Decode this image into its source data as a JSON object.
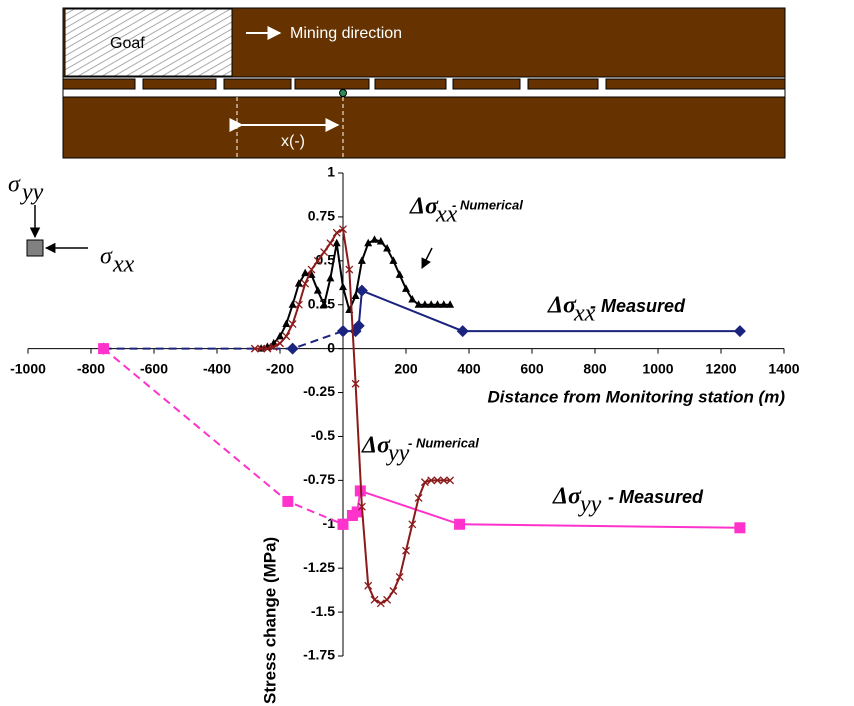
{
  "diagram": {
    "goaf": "Goaf",
    "direction": "Mining direction",
    "distance": "x(-)"
  },
  "stress_icon": {
    "symbol": "σ",
    "vertical": "yy",
    "horizontal": "xx"
  },
  "chart_data": {
    "type": "line",
    "x_label": "Distance from Monitoring station (m)",
    "y_label": "Stress change (MPa)",
    "xlim": [
      -1000,
      1400
    ],
    "ylim": [
      -1.75,
      1
    ],
    "xticks": [
      -1000,
      -800,
      -600,
      -400,
      -200,
      200,
      400,
      600,
      800,
      1000,
      1200,
      1400
    ],
    "yticks": [
      1,
      0.75,
      0.5,
      0.25,
      0,
      -0.25,
      -0.5,
      -0.75,
      -1,
      -1.25,
      -1.5,
      -1.75
    ],
    "annotations": [
      {
        "symbol": "Δσ",
        "sub": "xx",
        "text": "- Numerical"
      },
      {
        "symbol": "Δσ",
        "sub": "xx",
        "text": "- Measured"
      },
      {
        "symbol": "Δσ",
        "sub": "yy",
        "text": "- Numerical"
      },
      {
        "symbol": "Δσ",
        "sub": "yy",
        "text": "- Measured"
      }
    ],
    "series": [
      {
        "color": "#1a237e",
        "marker": "diamond",
        "dashed": true,
        "x": [
          -760,
          -160,
          0
        ],
        "values": [
          0,
          0,
          0.1
        ]
      },
      {
        "color": "#1a237e",
        "marker": "diamond",
        "dashed": false,
        "x": [
          0,
          40,
          50,
          60,
          380,
          1260
        ],
        "values": [
          0.1,
          0.1,
          0.13,
          0.33,
          0.1,
          0.1
        ]
      },
      {
        "color": "#ff33cc",
        "marker": "square",
        "dashed": true,
        "x": [
          -760,
          -175,
          0
        ],
        "values": [
          0,
          -0.87,
          -1.0
        ]
      },
      {
        "color": "#ff33cc",
        "marker": "square",
        "dashed": false,
        "x": [
          0,
          30,
          45,
          55,
          370,
          1260
        ],
        "values": [
          -1.0,
          -0.95,
          -0.93,
          -0.81,
          -1.0,
          -1.02
        ]
      },
      {
        "color": "#000000",
        "marker": "triangle",
        "dashed": false,
        "x": [
          -260,
          -240,
          -220,
          -200,
          -180,
          -160,
          -140,
          -120,
          -100,
          -80,
          -60,
          -40,
          -20,
          0,
          20,
          40,
          60,
          80,
          100,
          120,
          140,
          160,
          180,
          200,
          220,
          240,
          260,
          280,
          300,
          320,
          340
        ],
        "values": [
          0,
          0.01,
          0.03,
          0.07,
          0.14,
          0.25,
          0.37,
          0.43,
          0.42,
          0.33,
          0.25,
          0.4,
          0.6,
          0.35,
          0.22,
          0.3,
          0.5,
          0.6,
          0.62,
          0.61,
          0.57,
          0.5,
          0.42,
          0.34,
          0.28,
          0.25,
          0.25,
          0.25,
          0.25,
          0.25,
          0.25
        ]
      },
      {
        "color": "#8b1a1a",
        "marker": "x",
        "dashed": false,
        "x": [
          -280,
          -260,
          -240,
          -220,
          -200,
          -180,
          -160,
          -140,
          -120,
          -100,
          -80,
          -60,
          -40,
          -20,
          0,
          20,
          40,
          60,
          80,
          100,
          120,
          140,
          160,
          180,
          200,
          220,
          240,
          260,
          280,
          300,
          320,
          340
        ],
        "values": [
          0,
          0,
          0,
          0.01,
          0.03,
          0.07,
          0.14,
          0.25,
          0.37,
          0.45,
          0.5,
          0.55,
          0.6,
          0.66,
          0.68,
          0.45,
          -0.2,
          -0.9,
          -1.35,
          -1.43,
          -1.45,
          -1.43,
          -1.38,
          -1.3,
          -1.15,
          -1.0,
          -0.85,
          -0.76,
          -0.75,
          -0.75,
          -0.75,
          -0.75
        ]
      }
    ]
  }
}
